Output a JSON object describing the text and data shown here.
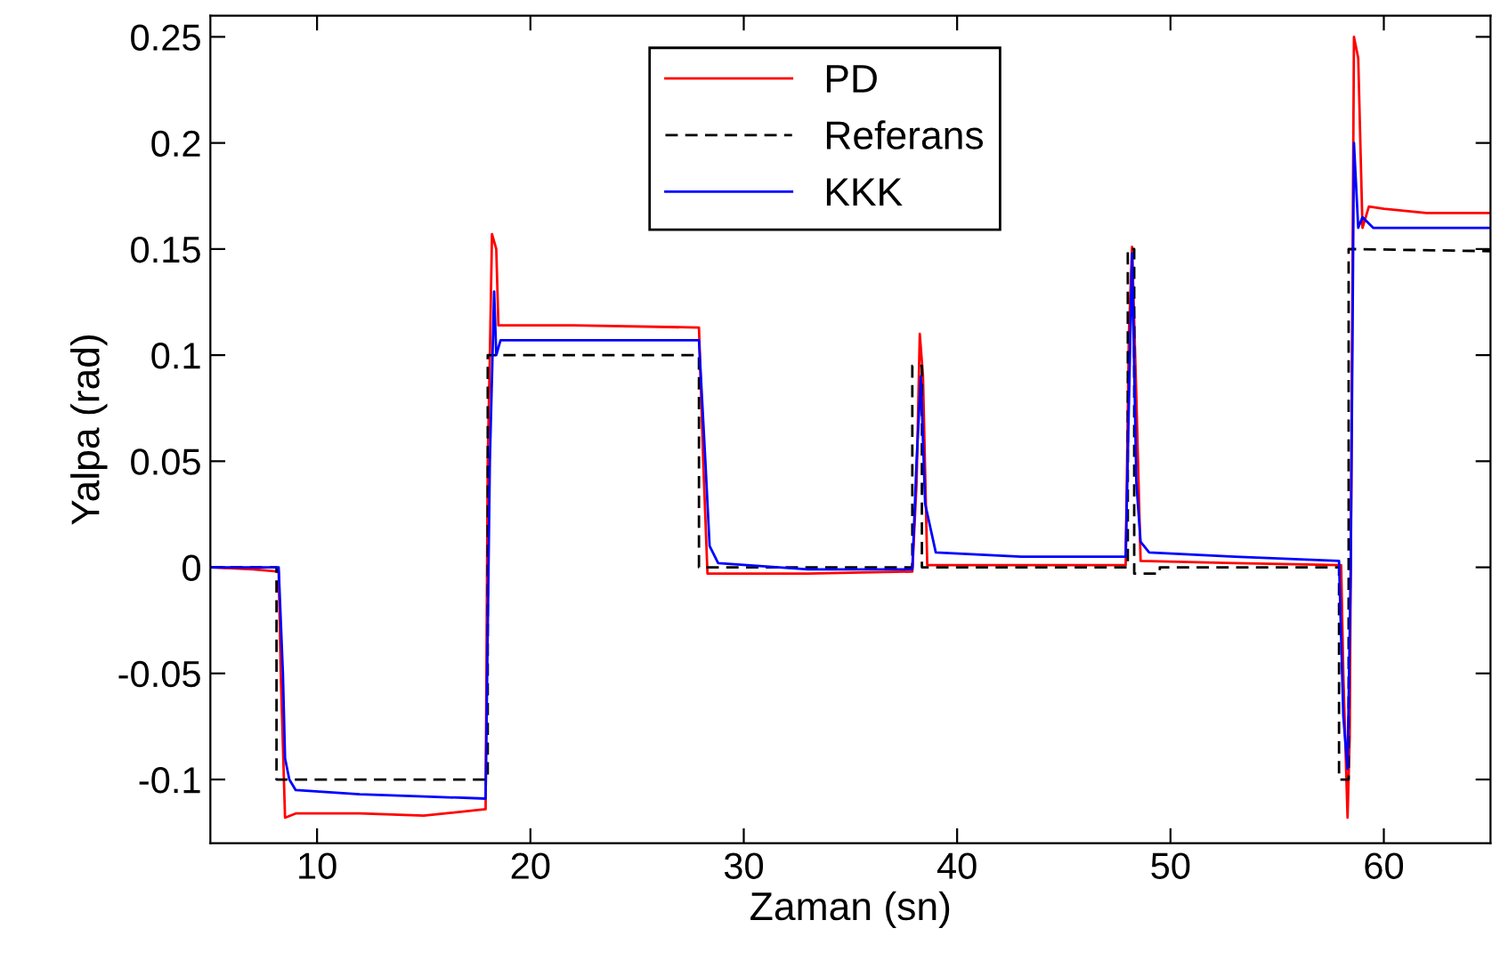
{
  "chart_data": {
    "type": "line",
    "xlabel": "Zaman (sn)",
    "ylabel": "Yalpa (rad)",
    "xlim": [
      5,
      65
    ],
    "ylim": [
      -0.13,
      0.26
    ],
    "xticks": [
      10,
      20,
      30,
      40,
      50,
      60
    ],
    "yticks": [
      -0.1,
      -0.05,
      0,
      0.05,
      0.1,
      0.15,
      0.2,
      0.25
    ],
    "grid": false,
    "legend": "top",
    "marker": "none",
    "series": [
      {
        "name": "PD",
        "color": "#ff0000",
        "line_style": "solid",
        "x": [
          5,
          7,
          8.2,
          8.3,
          8.5,
          9,
          12,
          15,
          17.9,
          18.0,
          18.1,
          18.2,
          18.4,
          18.5,
          22,
          27.9,
          28.1,
          28.3,
          33,
          37.9,
          38.1,
          38.25,
          38.4,
          38.6,
          43,
          47.9,
          48.05,
          48.2,
          48.4,
          48.6,
          53,
          58.0,
          58.1,
          58.3,
          58.4,
          58.6,
          58.8,
          59.0,
          59.3,
          60,
          62,
          65
        ],
        "values": [
          0,
          -0.001,
          -0.002,
          -0.05,
          -0.118,
          -0.116,
          -0.116,
          -0.117,
          -0.114,
          0.05,
          0.1,
          0.157,
          0.15,
          0.114,
          0.114,
          0.113,
          0.05,
          -0.003,
          -0.003,
          -0.002,
          0.04,
          0.11,
          0.09,
          0.001,
          0.001,
          0.001,
          0.11,
          0.151,
          0.08,
          0.003,
          0.002,
          0.001,
          -0.05,
          -0.118,
          -0.08,
          0.25,
          0.24,
          0.16,
          0.17,
          0.169,
          0.167,
          0.167
        ]
      },
      {
        "name": "Referans",
        "color": "#000000",
        "line_style": "dashed",
        "x": [
          5,
          8.1,
          8.1,
          18.0,
          18.0,
          27.9,
          27.9,
          37.9,
          37.9,
          38.35,
          38.35,
          48.0,
          48.0,
          48.3,
          48.3,
          49.5,
          49.5,
          57.9,
          57.9,
          58.35,
          58.35,
          65
        ],
        "values": [
          0,
          0,
          -0.1,
          -0.1,
          0.1,
          0.1,
          0,
          0,
          0.095,
          0.095,
          0,
          0,
          0.15,
          0.15,
          -0.003,
          -0.003,
          0,
          0,
          -0.1,
          -0.1,
          0.15,
          0.149
        ]
      },
      {
        "name": "KKK",
        "color": "#0000ff",
        "line_style": "solid",
        "x": [
          5,
          7,
          8.2,
          8.4,
          8.5,
          8.7,
          9,
          12,
          15,
          17.9,
          18.1,
          18.3,
          18.4,
          18.6,
          22,
          27.9,
          28.2,
          28.4,
          28.8,
          33,
          37.9,
          38.1,
          38.3,
          38.5,
          39,
          43,
          47.9,
          48.1,
          48.2,
          48.4,
          48.6,
          49,
          53,
          57.9,
          58.1,
          58.3,
          58.45,
          58.6,
          58.8,
          59.0,
          59.5,
          62,
          65
        ],
        "values": [
          0,
          0,
          0,
          -0.05,
          -0.09,
          -0.1,
          -0.105,
          -0.107,
          -0.108,
          -0.109,
          0.05,
          0.13,
          0.1,
          0.107,
          0.107,
          0.107,
          0.05,
          0.01,
          0.002,
          -0.001,
          -0.001,
          0.05,
          0.09,
          0.03,
          0.007,
          0.005,
          0.005,
          0.1,
          0.148,
          0.04,
          0.012,
          0.007,
          0.005,
          0.003,
          -0.07,
          -0.095,
          0.0,
          0.2,
          0.16,
          0.165,
          0.16,
          0.16,
          0.16
        ]
      }
    ]
  }
}
